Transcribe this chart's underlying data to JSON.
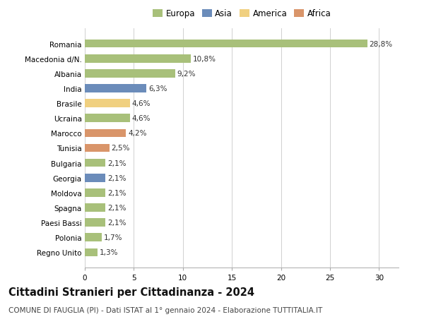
{
  "categories": [
    "Romania",
    "Macedonia d/N.",
    "Albania",
    "India",
    "Brasile",
    "Ucraina",
    "Marocco",
    "Tunisia",
    "Bulgaria",
    "Georgia",
    "Moldova",
    "Spagna",
    "Paesi Bassi",
    "Polonia",
    "Regno Unito"
  ],
  "values": [
    28.8,
    10.8,
    9.2,
    6.3,
    4.6,
    4.6,
    4.2,
    2.5,
    2.1,
    2.1,
    2.1,
    2.1,
    2.1,
    1.7,
    1.3
  ],
  "labels": [
    "28,8%",
    "10,8%",
    "9,2%",
    "6,3%",
    "4,6%",
    "4,6%",
    "4,2%",
    "2,5%",
    "2,1%",
    "2,1%",
    "2,1%",
    "2,1%",
    "2,1%",
    "1,7%",
    "1,3%"
  ],
  "colors": [
    "#a8c07a",
    "#a8c07a",
    "#a8c07a",
    "#6b8cba",
    "#f0d080",
    "#a8c07a",
    "#d9956a",
    "#d9956a",
    "#a8c07a",
    "#6b8cba",
    "#a8c07a",
    "#a8c07a",
    "#a8c07a",
    "#a8c07a",
    "#a8c07a"
  ],
  "continent_labels": [
    "Europa",
    "Asia",
    "America",
    "Africa"
  ],
  "continent_colors": [
    "#a8c07a",
    "#6b8cba",
    "#f0d080",
    "#d9956a"
  ],
  "xlim": [
    0,
    32
  ],
  "xticks": [
    0,
    5,
    10,
    15,
    20,
    25,
    30
  ],
  "title": "Cittadini Stranieri per Cittadinanza - 2024",
  "subtitle": "COMUNE DI FAUGLIA (PI) - Dati ISTAT al 1° gennaio 2024 - Elaborazione TUTTITALIA.IT",
  "bg_color": "#ffffff",
  "grid_color": "#d0d0d0",
  "bar_height": 0.55,
  "title_fontsize": 10.5,
  "subtitle_fontsize": 7.5,
  "label_fontsize": 7.5,
  "tick_fontsize": 7.5,
  "legend_fontsize": 8.5
}
